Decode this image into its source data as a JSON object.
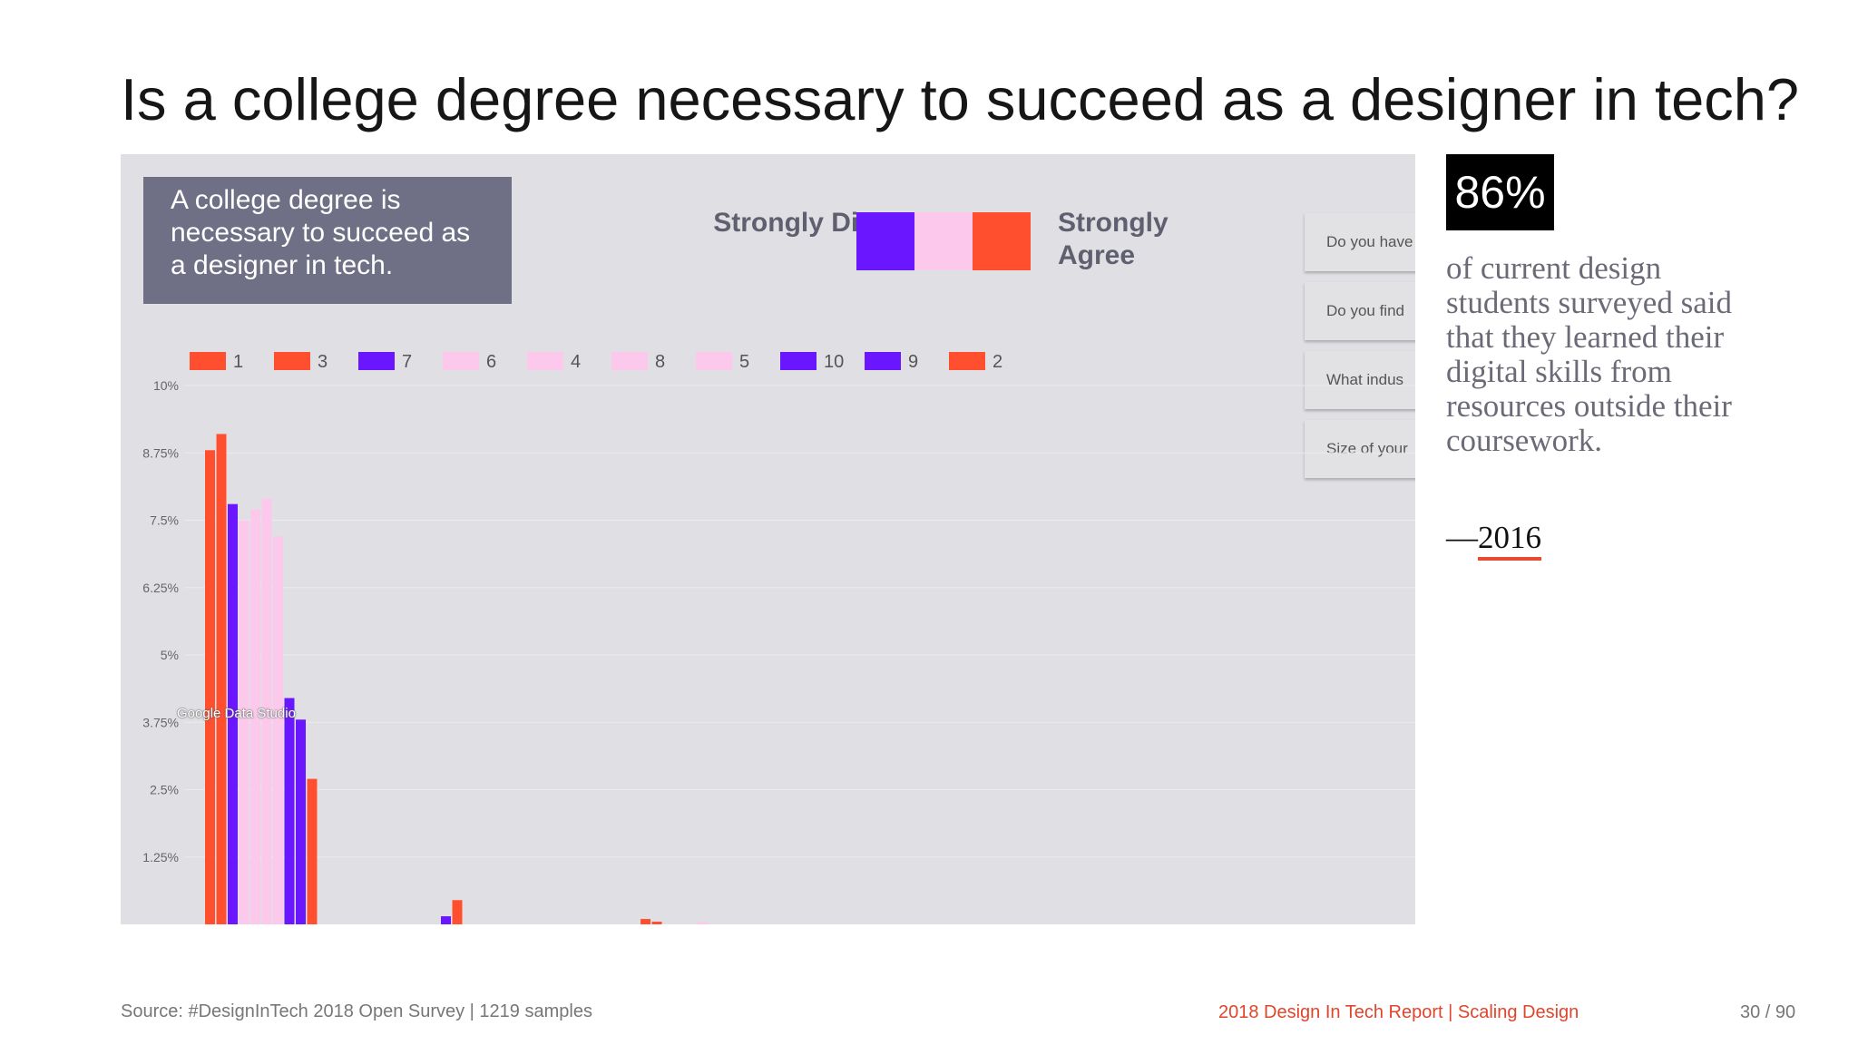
{
  "slide": {
    "title": "Is a college degree necessary to succeed as a designer in tech?",
    "statement": "A college degree is necessary to succeed as a designer in tech.",
    "scale": {
      "left_label": "Strongly Disagree",
      "right_label": "Strongly Agree",
      "colors": [
        "#6a16ff",
        "#fcc9ec",
        "#ff4f2f"
      ]
    },
    "tabs": [
      "Do you have",
      "Do you find",
      "What indus",
      "Size of your"
    ],
    "watermark": "Google Data Studio",
    "callout": {
      "stat": "86%",
      "text": "of current design students surveyed said that they learned their digital skills from resources outside their coursework.",
      "dash": "—",
      "year": "2016"
    },
    "footer": {
      "source": "Source: #DesignInTech 2018 Open Survey | 1219 samples",
      "report": "2018 Design In Tech Report | Scaling Design",
      "page": "30 / 90"
    }
  },
  "chart_data": {
    "type": "bar",
    "legend_position": "top",
    "grid": true,
    "ylim": [
      0,
      10
    ],
    "y_tick_labels": [
      "10%",
      "8.75%",
      "7.5%",
      "6.25%",
      "5%",
      "3.75%",
      "2.5%",
      "1.25%"
    ],
    "series": [
      {
        "name": "1",
        "color": "#ff4f2f",
        "values": [
          8.8,
          0,
          0,
          0.1
        ]
      },
      {
        "name": "3",
        "color": "#ff4f2f",
        "values": [
          9.1,
          0,
          0,
          0.05
        ]
      },
      {
        "name": "7",
        "color": "#6a16ff",
        "values": [
          7.8,
          0,
          0,
          0
        ]
      },
      {
        "name": "6",
        "color": "#fcc9ec",
        "values": [
          7.5,
          0,
          0,
          0
        ]
      },
      {
        "name": "4",
        "color": "#fcc9ec",
        "values": [
          7.7,
          0,
          0,
          0
        ]
      },
      {
        "name": "8",
        "color": "#fcc9ec",
        "values": [
          7.9,
          0,
          0,
          0.05
        ]
      },
      {
        "name": "5",
        "color": "#fcc9ec",
        "values": [
          7.2,
          0,
          0,
          0
        ]
      },
      {
        "name": "10",
        "color": "#6a16ff",
        "values": [
          4.2,
          0,
          0,
          0
        ]
      },
      {
        "name": "9",
        "color": "#6a16ff",
        "values": [
          3.8,
          0.15,
          0,
          0
        ]
      },
      {
        "name": "2",
        "color": "#ff4f2f",
        "values": [
          2.7,
          0.45,
          0,
          0
        ]
      }
    ]
  }
}
